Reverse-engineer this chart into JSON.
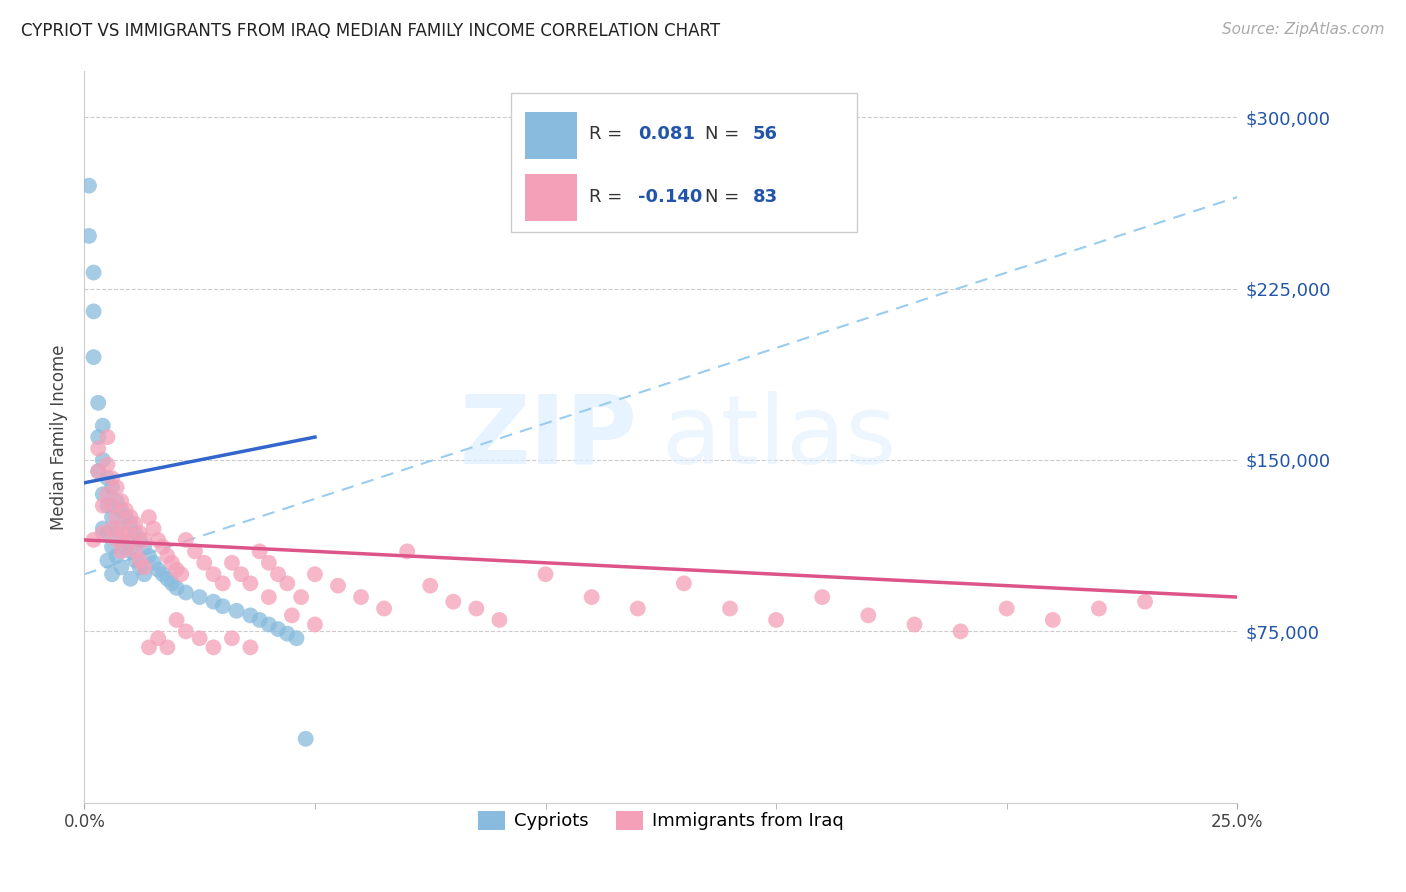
{
  "title": "CYPRIOT VS IMMIGRANTS FROM IRAQ MEDIAN FAMILY INCOME CORRELATION CHART",
  "source": "Source: ZipAtlas.com",
  "ylabel": "Median Family Income",
  "y_ticks": [
    75000,
    150000,
    225000,
    300000
  ],
  "y_tick_labels": [
    "$75,000",
    "$150,000",
    "$225,000",
    "$300,000"
  ],
  "x_min": 0.0,
  "x_max": 0.25,
  "y_min": 0,
  "y_max": 320000,
  "color_blue": "#88bbdd",
  "color_pink": "#f4a0b8",
  "line_blue_solid": "#3366cc",
  "line_pink_solid": "#dd5588",
  "line_blue_dashed": "#99ccee",
  "watermark_zip": "ZIP",
  "watermark_atlas": "atlas",
  "legend_label1": "Cypriots",
  "legend_label2": "Immigrants from Iraq",
  "blue_x": [
    0.001,
    0.001,
    0.002,
    0.002,
    0.002,
    0.003,
    0.003,
    0.003,
    0.004,
    0.004,
    0.004,
    0.004,
    0.005,
    0.005,
    0.005,
    0.005,
    0.006,
    0.006,
    0.006,
    0.006,
    0.007,
    0.007,
    0.007,
    0.008,
    0.008,
    0.008,
    0.009,
    0.009,
    0.01,
    0.01,
    0.01,
    0.011,
    0.011,
    0.012,
    0.012,
    0.013,
    0.013,
    0.014,
    0.015,
    0.016,
    0.017,
    0.018,
    0.019,
    0.02,
    0.022,
    0.025,
    0.028,
    0.03,
    0.033,
    0.036,
    0.038,
    0.04,
    0.042,
    0.044,
    0.046,
    0.048
  ],
  "blue_y": [
    270000,
    248000,
    232000,
    215000,
    195000,
    175000,
    160000,
    145000,
    165000,
    150000,
    135000,
    120000,
    142000,
    130000,
    118000,
    106000,
    138000,
    125000,
    112000,
    100000,
    132000,
    120000,
    108000,
    128000,
    115000,
    103000,
    125000,
    112000,
    122000,
    110000,
    98000,
    118000,
    106000,
    115000,
    103000,
    112000,
    100000,
    108000,
    105000,
    102000,
    100000,
    98000,
    96000,
    94000,
    92000,
    90000,
    88000,
    86000,
    84000,
    82000,
    80000,
    78000,
    76000,
    74000,
    72000,
    28000
  ],
  "pink_x": [
    0.002,
    0.003,
    0.003,
    0.004,
    0.004,
    0.005,
    0.005,
    0.005,
    0.006,
    0.006,
    0.006,
    0.007,
    0.007,
    0.007,
    0.008,
    0.008,
    0.008,
    0.009,
    0.009,
    0.01,
    0.01,
    0.011,
    0.011,
    0.012,
    0.012,
    0.013,
    0.013,
    0.014,
    0.015,
    0.016,
    0.017,
    0.018,
    0.019,
    0.02,
    0.021,
    0.022,
    0.024,
    0.026,
    0.028,
    0.03,
    0.032,
    0.034,
    0.036,
    0.038,
    0.04,
    0.042,
    0.044,
    0.047,
    0.05,
    0.055,
    0.06,
    0.065,
    0.07,
    0.075,
    0.08,
    0.085,
    0.09,
    0.1,
    0.11,
    0.12,
    0.13,
    0.14,
    0.15,
    0.16,
    0.17,
    0.18,
    0.19,
    0.2,
    0.21,
    0.22,
    0.014,
    0.016,
    0.018,
    0.02,
    0.022,
    0.025,
    0.028,
    0.032,
    0.036,
    0.04,
    0.045,
    0.05,
    0.23
  ],
  "pink_y": [
    115000,
    155000,
    145000,
    130000,
    118000,
    160000,
    148000,
    135000,
    142000,
    130000,
    120000,
    138000,
    125000,
    115000,
    132000,
    120000,
    110000,
    128000,
    118000,
    125000,
    115000,
    122000,
    110000,
    118000,
    106000,
    115000,
    103000,
    125000,
    120000,
    115000,
    112000,
    108000,
    105000,
    102000,
    100000,
    115000,
    110000,
    105000,
    100000,
    96000,
    105000,
    100000,
    96000,
    110000,
    105000,
    100000,
    96000,
    90000,
    100000,
    95000,
    90000,
    85000,
    110000,
    95000,
    88000,
    85000,
    80000,
    100000,
    90000,
    85000,
    96000,
    85000,
    80000,
    90000,
    82000,
    78000,
    75000,
    85000,
    80000,
    85000,
    68000,
    72000,
    68000,
    80000,
    75000,
    72000,
    68000,
    72000,
    68000,
    90000,
    82000,
    78000,
    88000
  ]
}
